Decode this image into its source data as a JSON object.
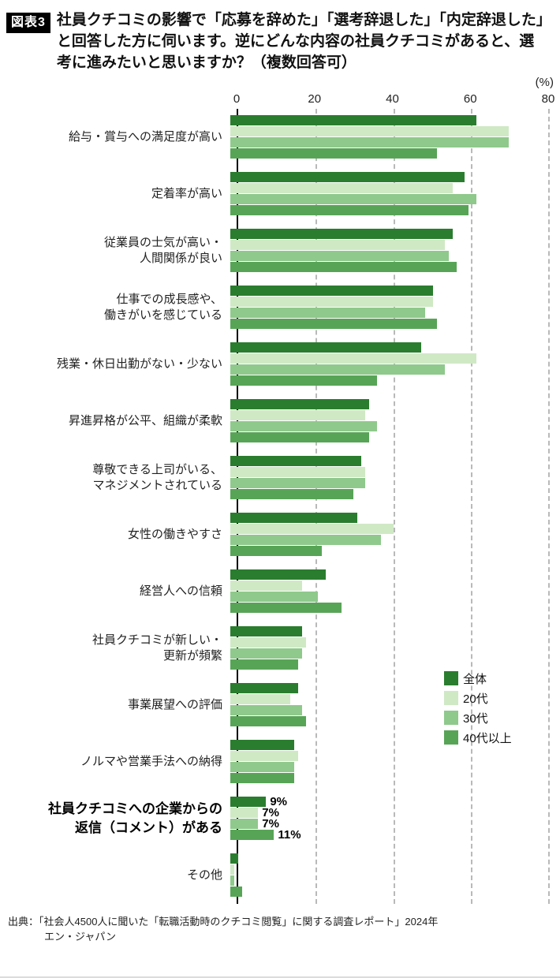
{
  "header": {
    "badge": "図表3",
    "title": "社員クチコミの影響で「応募を辞めた」「選考辞退した」「内定辞退した」と回答した方に伺います。逆にどんな内容の社員クチコミがあると、選考に進みたいと思いますか？（複数回答可）"
  },
  "chart_data": {
    "type": "bar",
    "orientation": "horizontal",
    "unit_label": "(%)",
    "x_ticks": [
      0,
      20,
      40,
      60,
      80
    ],
    "xlim": [
      0,
      80
    ],
    "grid": "dashed-vertical",
    "legend_position": "right-middle",
    "categories": [
      {
        "lines": [
          "給与・賞与への満足度が高い"
        ],
        "bold": false
      },
      {
        "lines": [
          "定着率が高い"
        ],
        "bold": false
      },
      {
        "lines": [
          "従業員の士気が高い・",
          "人間関係が良い"
        ],
        "bold": false
      },
      {
        "lines": [
          "仕事での成長感や、",
          "働きがいを感じている"
        ],
        "bold": false
      },
      {
        "lines": [
          "残業・休日出勤がない・少ない"
        ],
        "bold": false
      },
      {
        "lines": [
          "昇進昇格が公平、組織が柔軟"
        ],
        "bold": false
      },
      {
        "lines": [
          "尊敬できる上司がいる、",
          "マネジメントされている"
        ],
        "bold": false
      },
      {
        "lines": [
          "女性の働きやすさ"
        ],
        "bold": false
      },
      {
        "lines": [
          "経営人への信頼"
        ],
        "bold": false
      },
      {
        "lines": [
          "社員クチコミが新しい・",
          "更新が頻繁"
        ],
        "bold": false
      },
      {
        "lines": [
          "事業展望への評価"
        ],
        "bold": false
      },
      {
        "lines": [
          "ノルマや営業手法への納得"
        ],
        "bold": false
      },
      {
        "lines": [
          "社員クチコミへの企業からの",
          "返信（コメント）がある"
        ],
        "bold": true
      },
      {
        "lines": [
          "その他"
        ],
        "bold": false
      }
    ],
    "series": [
      {
        "name": "全体",
        "color": "#2a7d2e",
        "values": [
          62,
          59,
          56,
          51,
          48,
          35,
          33,
          32,
          24,
          18,
          17,
          16,
          9,
          2
        ],
        "value_labels": {
          "12": "9%"
        }
      },
      {
        "name": "20代",
        "color": "#cfe9c5",
        "values": [
          70,
          56,
          54,
          51,
          62,
          34,
          34,
          41,
          18,
          19,
          15,
          17,
          7,
          1
        ],
        "value_labels": {
          "12": "7%"
        }
      },
      {
        "name": "30代",
        "color": "#8fc98c",
        "values": [
          70,
          62,
          55,
          49,
          54,
          37,
          34,
          38,
          22,
          18,
          18,
          16,
          7,
          1
        ],
        "value_labels": {
          "12": "7%"
        }
      },
      {
        "name": "40代以上",
        "color": "#58a457",
        "values": [
          52,
          60,
          57,
          52,
          37,
          35,
          31,
          23,
          28,
          17,
          19,
          16,
          11,
          3
        ],
        "value_labels": {
          "12": "11%"
        }
      }
    ]
  },
  "source": {
    "line1": "出典：「社会人4500人に聞いた「転職活動時のクチコミ閲覧」に関する調査レポート」2024年",
    "line2": "エン・ジャパン"
  }
}
